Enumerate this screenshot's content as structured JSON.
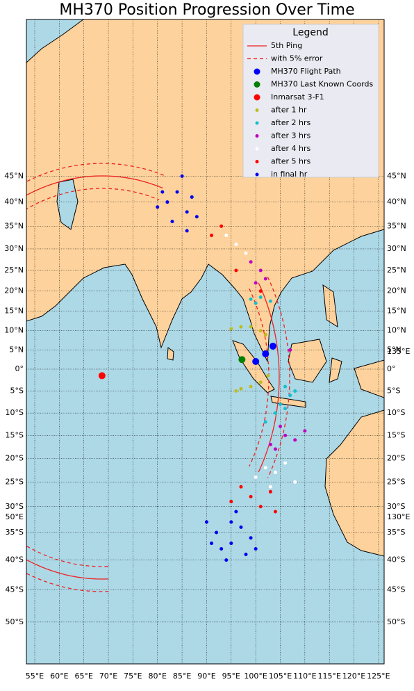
{
  "chart_data": {
    "type": "map-scatter",
    "title": "MH370 Position Progression Over Time",
    "legend_title": "Legend",
    "legend_position": "upper right",
    "grid": true,
    "xticks": [
      {
        "value": 55,
        "label": "55°E"
      },
      {
        "value": 60,
        "label": "60°E"
      },
      {
        "value": 65,
        "label": "65°E"
      },
      {
        "value": 70,
        "label": "70°E"
      },
      {
        "value": 75,
        "label": "75°E"
      },
      {
        "value": 80,
        "label": "80°E"
      },
      {
        "value": 85,
        "label": "85°E"
      },
      {
        "value": 90,
        "label": "90°E"
      },
      {
        "value": 95,
        "label": "95°E"
      },
      {
        "value": 100,
        "label": "100°E"
      },
      {
        "value": 105,
        "label": "105°E"
      },
      {
        "value": 110,
        "label": "110°E"
      },
      {
        "value": 115,
        "label": "115°E"
      },
      {
        "value": 120,
        "label": "120°E"
      },
      {
        "value": 125,
        "label": "125°E"
      }
    ],
    "yticks": [
      {
        "value": 45,
        "label": "45°N"
      },
      {
        "value": 40,
        "label": "40°N"
      },
      {
        "value": 35,
        "label": "35°N"
      },
      {
        "value": 30,
        "label": "30°N"
      },
      {
        "value": 25,
        "label": "25°N"
      },
      {
        "value": 20,
        "label": "20°N"
      },
      {
        "value": 15,
        "label": "15°N"
      },
      {
        "value": 10,
        "label": "10°N"
      },
      {
        "value": 5,
        "label": "5°N"
      },
      {
        "value": 0,
        "label": "0°"
      },
      {
        "value": -5,
        "label": "5°S"
      },
      {
        "value": -10,
        "label": "10°S"
      },
      {
        "value": -15,
        "label": "15°S"
      },
      {
        "value": -20,
        "label": "20°S"
      },
      {
        "value": -25,
        "label": "25°S"
      },
      {
        "value": -30,
        "label": "30°S"
      },
      {
        "value": -35,
        "label": "35°S"
      },
      {
        "value": -40,
        "label": "40°S"
      },
      {
        "value": -45,
        "label": "45°S"
      },
      {
        "value": -50,
        "label": "50°S"
      }
    ],
    "left_extra_labels": [
      "50°E"
    ],
    "right_extra_labels": [
      "135°E",
      "130°E"
    ],
    "arcs": [
      {
        "name": "5th Ping",
        "color": "#ee2222",
        "style": "solid"
      },
      {
        "name": "with 5% error",
        "color": "#ee2222",
        "style": "dashed"
      }
    ],
    "series": [
      {
        "name": "MH370 Flight Path",
        "color": "#0000ff",
        "size": 5,
        "lon": [
          100,
          102,
          103.5
        ],
        "lat": [
          2,
          4,
          6
        ]
      },
      {
        "name": "MH370 Last Known Coords",
        "color": "#008000",
        "size": 5,
        "lon": [
          97.2
        ],
        "lat": [
          2.5
        ]
      },
      {
        "name": "Inmarsat 3-F1",
        "color": "#ff0000",
        "size": 5,
        "lon": [
          68.7
        ],
        "lat": [
          -1.5
        ]
      },
      {
        "name": "after 1 hr",
        "color": "#bcbd22",
        "size": 2.5,
        "lon": [
          95,
          97,
          99,
          101,
          102,
          96,
          97,
          99,
          101,
          102.5
        ],
        "lat": [
          10.5,
          11,
          11,
          10,
          9,
          -5,
          -4.5,
          -4,
          -3,
          -1.5
        ]
      },
      {
        "name": "after 2 hrs",
        "color": "#17becf",
        "size": 2.5,
        "lon": [
          99,
          100,
          101,
          103,
          105,
          107,
          106,
          104,
          108,
          102,
          106
        ],
        "lat": [
          18,
          17,
          18.5,
          17.5,
          -8,
          -6,
          -9,
          -10,
          -5,
          -12,
          -4
        ]
      },
      {
        "name": "after 3 hrs",
        "color": "#bf00bf",
        "size": 2.5,
        "lon": [
          99,
          101,
          102,
          100,
          107,
          106,
          108,
          104,
          110,
          105,
          103
        ],
        "lat": [
          27,
          25,
          23,
          22,
          5,
          -15,
          -16,
          -18,
          -14,
          -13,
          -17
        ]
      },
      {
        "name": "after 4 hrs",
        "color": "#ffffff",
        "size": 2.5,
        "lon": [
          94,
          96,
          98,
          102,
          104,
          106,
          100,
          108,
          103
        ],
        "lat": [
          33,
          31,
          29,
          -22,
          -23,
          -21,
          -24,
          -25,
          -26
        ]
      },
      {
        "name": "after 5 hrs",
        "color": "#ff0000",
        "size": 2.5,
        "lon": [
          91,
          93,
          96,
          101,
          99,
          101,
          103,
          97,
          104,
          95
        ],
        "lat": [
          33,
          35,
          25,
          20,
          -28,
          -30,
          -27,
          -26,
          -31,
          -29
        ]
      },
      {
        "name": "in final hr",
        "color": "#0000ee",
        "size": 2.5,
        "lon": [
          82,
          84,
          86,
          85,
          80,
          88,
          83,
          87,
          81,
          86,
          92,
          95,
          97,
          94,
          90,
          96,
          99,
          93,
          98,
          91,
          95,
          100
        ],
        "lat": [
          40,
          42,
          38,
          45,
          39,
          37,
          36,
          41,
          42,
          34,
          -35,
          -37,
          -34,
          -40,
          -33,
          -31,
          -36,
          -38,
          -39,
          -37,
          -33,
          -38
        ]
      }
    ]
  }
}
